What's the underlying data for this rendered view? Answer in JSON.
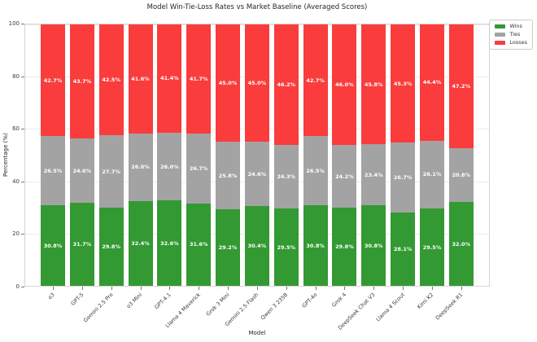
{
  "title": "Model Win-Tie-Loss Rates vs Market Baseline (Averaged Scores)",
  "axes": {
    "xlabel": "Model",
    "ylabel": "Percentage (%)",
    "y_ticks": [
      0,
      20,
      40,
      60,
      80,
      100
    ]
  },
  "legend": {
    "items": [
      {
        "label": "Wins",
        "color": "#339933"
      },
      {
        "label": "Ties",
        "color": "#a3a3a3"
      },
      {
        "label": "Losses",
        "color": "#fa3c3c"
      }
    ]
  },
  "colors": {
    "wins": "#339933",
    "ties": "#a3a3a3",
    "losses": "#fa3c3c",
    "grid": "#ebebeb",
    "spine": "#d4d4d4"
  },
  "chart_data": {
    "type": "bar",
    "stacked": true,
    "title": "Model Win-Tie-Loss Rates vs Market Baseline (Averaged Scores)",
    "xlabel": "Model",
    "ylabel": "Percentage (%)",
    "ylim": [
      0,
      100
    ],
    "grid": true,
    "legend_position": "upper right outside plot",
    "bar_label_format": "one decimal percent, white bold, centered in segment",
    "categories": [
      "o3",
      "GPT-5",
      "Gemini 2.5 Pro",
      "o3 Mini",
      "GPT-4.1",
      "Llama 4 Maverick",
      "Grok 3 Mini",
      "Gemini 2.5 Flash",
      "Qwen 3 235B",
      "GPT-4o",
      "Grok 4",
      "DeepSeek Chat V3",
      "Llama 4 Scout",
      "Kimi K2",
      "DeepSeek R1"
    ],
    "series": [
      {
        "name": "Wins",
        "color": "#339933",
        "values": [
          30.8,
          31.7,
          29.8,
          32.4,
          32.6,
          31.6,
          29.2,
          30.4,
          29.5,
          30.8,
          29.8,
          30.8,
          28.1,
          29.5,
          32.0
        ]
      },
      {
        "name": "Ties",
        "color": "#a3a3a3",
        "values": [
          26.5,
          24.6,
          27.7,
          26.0,
          26.0,
          26.7,
          25.8,
          24.6,
          24.3,
          26.5,
          24.2,
          23.4,
          26.7,
          26.1,
          20.8
        ]
      },
      {
        "name": "Losses",
        "color": "#fa3c3c",
        "values": [
          42.7,
          43.7,
          42.5,
          41.6,
          41.4,
          41.7,
          45.0,
          45.0,
          46.2,
          42.7,
          46.0,
          45.8,
          45.3,
          44.4,
          47.2
        ]
      }
    ]
  }
}
